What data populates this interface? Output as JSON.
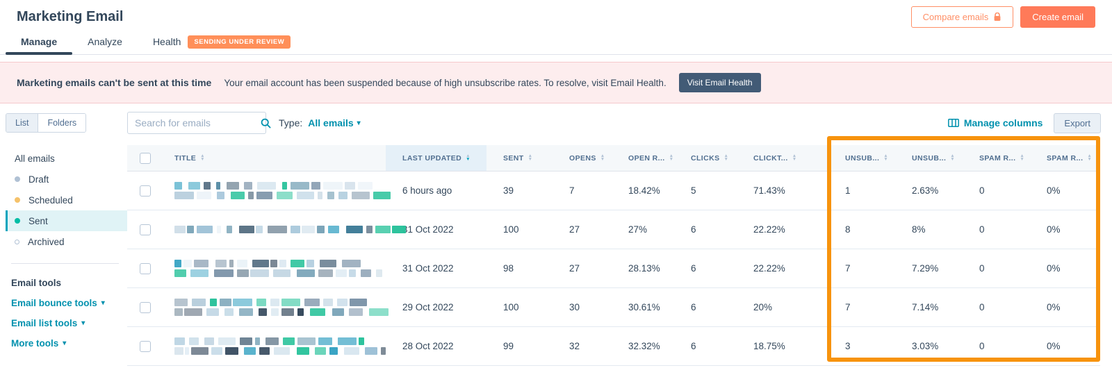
{
  "header": {
    "title": "Marketing Email",
    "compare_button": "Compare emails",
    "create_button": "Create email"
  },
  "tabs": [
    {
      "label": "Manage",
      "active": true
    },
    {
      "label": "Analyze",
      "active": false
    },
    {
      "label": "Health",
      "active": false,
      "badge": "SENDING UNDER REVIEW"
    }
  ],
  "alert": {
    "title": "Marketing emails can't be sent at this time",
    "message": "Your email account has been suspended because of high unsubscribe rates. To resolve, visit Email Health.",
    "button": "Visit Email Health"
  },
  "sidebar": {
    "view_toggle": [
      {
        "label": "List",
        "active": true
      },
      {
        "label": "Folders",
        "active": false
      }
    ],
    "items": [
      {
        "label": "All emails",
        "dot": "none",
        "selected": false
      },
      {
        "label": "Draft",
        "dot": "grey",
        "selected": false
      },
      {
        "label": "Scheduled",
        "dot": "yellow",
        "selected": false
      },
      {
        "label": "Sent",
        "dot": "teal",
        "selected": true
      },
      {
        "label": "Archived",
        "dot": "hollow",
        "selected": false
      }
    ],
    "tools_heading": "Email tools",
    "tool_links": [
      "Email bounce tools",
      "Email list tools",
      "More tools"
    ]
  },
  "toolbar": {
    "search_placeholder": "Search for emails",
    "type_label": "Type:",
    "type_value": "All emails",
    "manage_columns": "Manage columns",
    "export": "Export"
  },
  "table": {
    "columns": [
      "TITLE",
      "LAST UPDATED",
      "SENT",
      "OPENS",
      "OPEN R...",
      "CLICKS",
      "CLICKT...",
      "UNSUB...",
      "UNSUB...",
      "SPAM R...",
      "SPAM R..."
    ],
    "sorted_column": "LAST UPDATED",
    "sort_direction": "desc",
    "rows": [
      {
        "title_redacted": true,
        "title_lines": 2,
        "last_updated": "6 hours ago",
        "sent": "39",
        "opens": "7",
        "open_rate": "18.42%",
        "clicks": "5",
        "click_rate": "71.43%",
        "unsub": "1",
        "unsub_rate": "2.63%",
        "spam": "0",
        "spam_rate": "0%"
      },
      {
        "title_redacted": true,
        "title_lines": 1,
        "last_updated": "31 Oct 2022",
        "sent": "100",
        "opens": "27",
        "open_rate": "27%",
        "clicks": "6",
        "click_rate": "22.22%",
        "unsub": "8",
        "unsub_rate": "8%",
        "spam": "0",
        "spam_rate": "0%"
      },
      {
        "title_redacted": true,
        "title_lines": 2,
        "last_updated": "31 Oct 2022",
        "sent": "98",
        "opens": "27",
        "open_rate": "28.13%",
        "clicks": "6",
        "click_rate": "22.22%",
        "unsub": "7",
        "unsub_rate": "7.29%",
        "spam": "0",
        "spam_rate": "0%"
      },
      {
        "title_redacted": true,
        "title_lines": 2,
        "last_updated": "29 Oct 2022",
        "sent": "100",
        "opens": "30",
        "open_rate": "30.61%",
        "clicks": "6",
        "click_rate": "20%",
        "unsub": "7",
        "unsub_rate": "7.14%",
        "spam": "0",
        "spam_rate": "0%"
      },
      {
        "title_redacted": true,
        "title_lines": 2,
        "last_updated": "28 Oct 2022",
        "sent": "99",
        "opens": "32",
        "open_rate": "32.32%",
        "clicks": "6",
        "click_rate": "18.75%",
        "unsub": "3",
        "unsub_rate": "3.03%",
        "spam": "0",
        "spam_rate": "0%"
      }
    ]
  },
  "colors": {
    "accent_coral": "#ff7a59",
    "accent_teal": "#0091ae",
    "highlight_orange": "#f7930d",
    "navy": "#33475b"
  }
}
